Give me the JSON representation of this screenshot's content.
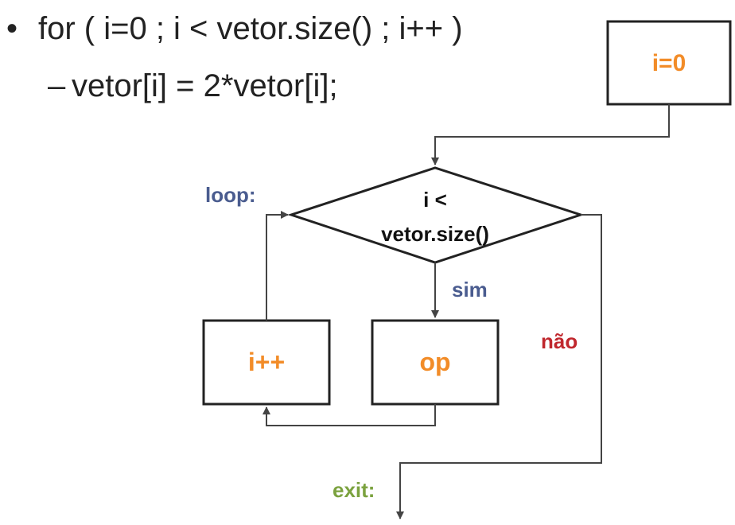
{
  "text": {
    "bullet_symbol": "•",
    "for_statement": "for ( i=0 ; i < vetor.size() ; i++ )",
    "dash_symbol": "–",
    "body_statement": "vetor[i] = 2*vetor[i];"
  },
  "diagram": {
    "init_box": "i=0",
    "condition_line1": "i <",
    "condition_line2": "vetor.size()",
    "increment_box": "i++",
    "op_box": "op",
    "loop_label": "loop:",
    "yes_label": "sim",
    "no_label": "não",
    "exit_label": "exit:"
  },
  "colors": {
    "orange": "#F28C28",
    "blue": "#4A5C8F",
    "red": "#C0272D",
    "green": "#7BA23F",
    "line": "#333333"
  }
}
